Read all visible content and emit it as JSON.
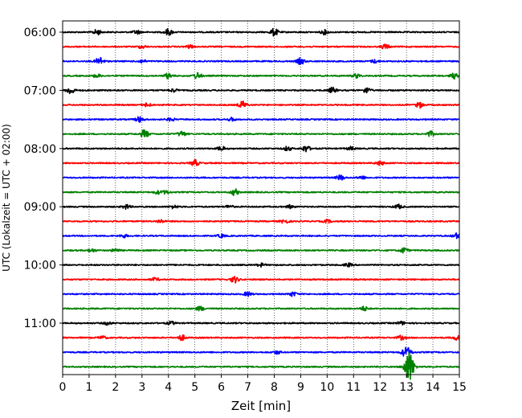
{
  "chart_data": {
    "type": "line",
    "title": "",
    "xlabel": "Zeit  [min]",
    "ylabel": "UTC (Lokalzeit = UTC + 02:00)",
    "xlim": [
      0,
      15
    ],
    "x_ticks": [
      0,
      1,
      2,
      3,
      4,
      5,
      6,
      7,
      8,
      9,
      10,
      11,
      12,
      13,
      14,
      15
    ],
    "grid": "vertical dotted lines at each minute",
    "legend": "none",
    "trace_interval_min": 15,
    "traces_per_hour": 4,
    "trace_colors": [
      "#000000",
      "#ff0000",
      "#0000ff",
      "#008000"
    ],
    "y_tick_labels": [
      "06:00",
      "07:00",
      "08:00",
      "09:00",
      "10:00",
      "11:00"
    ],
    "y_tick_trace_index": [
      0,
      4,
      8,
      12,
      16,
      20
    ],
    "series": [
      {
        "start": "06:00",
        "color": "#000000",
        "events": [
          [
            1.3,
            0.5
          ],
          [
            2.8,
            0.35
          ],
          [
            4.0,
            0.6
          ],
          [
            8.0,
            0.7
          ],
          [
            9.9,
            0.4
          ]
        ]
      },
      {
        "start": "06:15",
        "color": "#ff0000",
        "events": [
          [
            3.0,
            0.3
          ],
          [
            4.8,
            0.3
          ],
          [
            12.2,
            0.45
          ]
        ]
      },
      {
        "start": "06:30",
        "color": "#0000ff",
        "events": [
          [
            1.4,
            0.8
          ],
          [
            3.0,
            0.3
          ],
          [
            9.0,
            0.6
          ],
          [
            11.8,
            0.3
          ]
        ]
      },
      {
        "start": "06:45",
        "color": "#008000",
        "events": [
          [
            1.3,
            0.3
          ],
          [
            4.0,
            0.5
          ],
          [
            5.1,
            0.6
          ],
          [
            11.1,
            0.4
          ],
          [
            14.8,
            0.5
          ]
        ]
      },
      {
        "start": "07:00",
        "color": "#000000",
        "events": [
          [
            0.3,
            0.7
          ],
          [
            4.2,
            0.3
          ],
          [
            10.2,
            0.5
          ],
          [
            11.5,
            0.5
          ]
        ]
      },
      {
        "start": "07:15",
        "color": "#ff0000",
        "events": [
          [
            3.2,
            0.35
          ],
          [
            6.8,
            0.7
          ],
          [
            13.5,
            0.5
          ]
        ]
      },
      {
        "start": "07:30",
        "color": "#0000ff",
        "events": [
          [
            2.9,
            0.5
          ],
          [
            4.1,
            0.3
          ],
          [
            6.4,
            0.3
          ]
        ]
      },
      {
        "start": "07:45",
        "color": "#008000",
        "events": [
          [
            3.1,
            0.8
          ],
          [
            4.5,
            0.5
          ],
          [
            13.9,
            0.5
          ]
        ]
      },
      {
        "start": "08:00",
        "color": "#000000",
        "events": [
          [
            6.0,
            0.4
          ],
          [
            8.5,
            0.4
          ],
          [
            9.2,
            0.6
          ],
          [
            10.9,
            0.3
          ]
        ]
      },
      {
        "start": "08:15",
        "color": "#ff0000",
        "events": [
          [
            5.0,
            0.6
          ],
          [
            12.0,
            0.4
          ]
        ]
      },
      {
        "start": "08:30",
        "color": "#0000ff",
        "events": [
          [
            10.5,
            0.5
          ],
          [
            11.3,
            0.3
          ]
        ]
      },
      {
        "start": "08:45",
        "color": "#008000",
        "events": [
          [
            3.6,
            0.3
          ],
          [
            3.9,
            0.3
          ],
          [
            6.5,
            0.6
          ]
        ]
      },
      {
        "start": "09:00",
        "color": "#000000",
        "events": [
          [
            2.4,
            0.4
          ],
          [
            4.2,
            0.3
          ],
          [
            6.3,
            0.3
          ],
          [
            8.6,
            0.3
          ],
          [
            12.7,
            0.4
          ]
        ]
      },
      {
        "start": "09:15",
        "color": "#ff0000",
        "events": [
          [
            3.7,
            0.3
          ],
          [
            8.4,
            0.4
          ],
          [
            10.0,
            0.3
          ]
        ]
      },
      {
        "start": "09:30",
        "color": "#0000ff",
        "events": [
          [
            2.3,
            0.3
          ],
          [
            6.0,
            0.3
          ],
          [
            14.9,
            0.5
          ]
        ]
      },
      {
        "start": "09:45",
        "color": "#008000",
        "events": [
          [
            1.1,
            0.3
          ],
          [
            2.0,
            0.3
          ],
          [
            12.9,
            0.5
          ]
        ]
      },
      {
        "start": "10:00",
        "color": "#000000",
        "events": [
          [
            7.5,
            0.3
          ],
          [
            10.8,
            0.3
          ]
        ]
      },
      {
        "start": "10:15",
        "color": "#ff0000",
        "events": [
          [
            3.5,
            0.3
          ],
          [
            6.5,
            0.6
          ]
        ]
      },
      {
        "start": "10:30",
        "color": "#0000ff",
        "events": [
          [
            7.0,
            0.4
          ],
          [
            8.7,
            0.4
          ]
        ]
      },
      {
        "start": "10:45",
        "color": "#008000",
        "events": [
          [
            5.2,
            0.4
          ],
          [
            11.4,
            0.4
          ]
        ]
      },
      {
        "start": "11:00",
        "color": "#000000",
        "events": [
          [
            1.7,
            0.3
          ],
          [
            4.1,
            0.3
          ],
          [
            12.8,
            0.3
          ]
        ]
      },
      {
        "start": "11:15",
        "color": "#ff0000",
        "events": [
          [
            1.5,
            0.3
          ],
          [
            4.5,
            0.5
          ],
          [
            12.8,
            0.4
          ],
          [
            14.9,
            0.4
          ]
        ]
      },
      {
        "start": "11:30",
        "color": "#0000ff",
        "events": [
          [
            8.1,
            0.3
          ],
          [
            13.0,
            1.0
          ]
        ]
      },
      {
        "start": "11:45",
        "color": "#008000",
        "events": [
          [
            13.1,
            3.0
          ]
        ]
      }
    ]
  }
}
